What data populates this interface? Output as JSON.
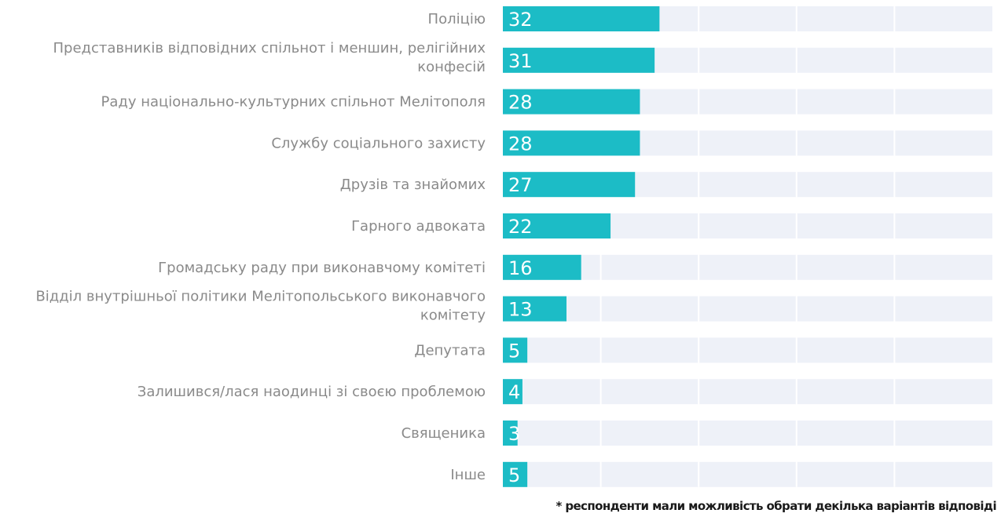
{
  "chart_data": {
    "type": "bar",
    "orientation": "horizontal",
    "categories": [
      "Поліцію",
      "Представників відповідних спільнот і меншин, релігійних конфесій",
      "Раду національно-культурних спільнот Мелітополя",
      "Службу соціального захисту",
      "Друзів та знайомих",
      "Гарного адвоката",
      "Громадську раду при виконавчому комітеті",
      "Відділ внутрішньої політики Мелітопольського виконавчого комітету",
      "Депутата",
      "Залишився/лася наодинці зі своєю проблемою",
      "Священика",
      "Інше"
    ],
    "category_lines": [
      [
        "Поліцію"
      ],
      [
        "Представників відповідних спільнот і меншин, релігійних",
        "конфесій"
      ],
      [
        "Раду національно-культурних спільнот Мелітополя"
      ],
      [
        "Службу соціального захисту"
      ],
      [
        "Друзів та знайомих"
      ],
      [
        "Гарного адвоката"
      ],
      [
        "Громадську раду при виконавчому комітеті"
      ],
      [
        "Відділ внутрішньої політики Мелітопольського виконавчого",
        "комітету"
      ],
      [
        "Депутата"
      ],
      [
        "Залишився/лася наодинці зі своєю проблемою"
      ],
      [
        "Священика"
      ],
      [
        "Інше"
      ]
    ],
    "values": [
      32,
      31,
      28,
      28,
      27,
      22,
      16,
      13,
      5,
      4,
      3,
      5
    ],
    "xlim": [
      0,
      100
    ],
    "grid": true,
    "colors": {
      "bar": "#1cbcc6",
      "track": "#eef1f8"
    }
  },
  "footnote": "* респонденти мали можливість обрати декілька варіантів відповіді"
}
